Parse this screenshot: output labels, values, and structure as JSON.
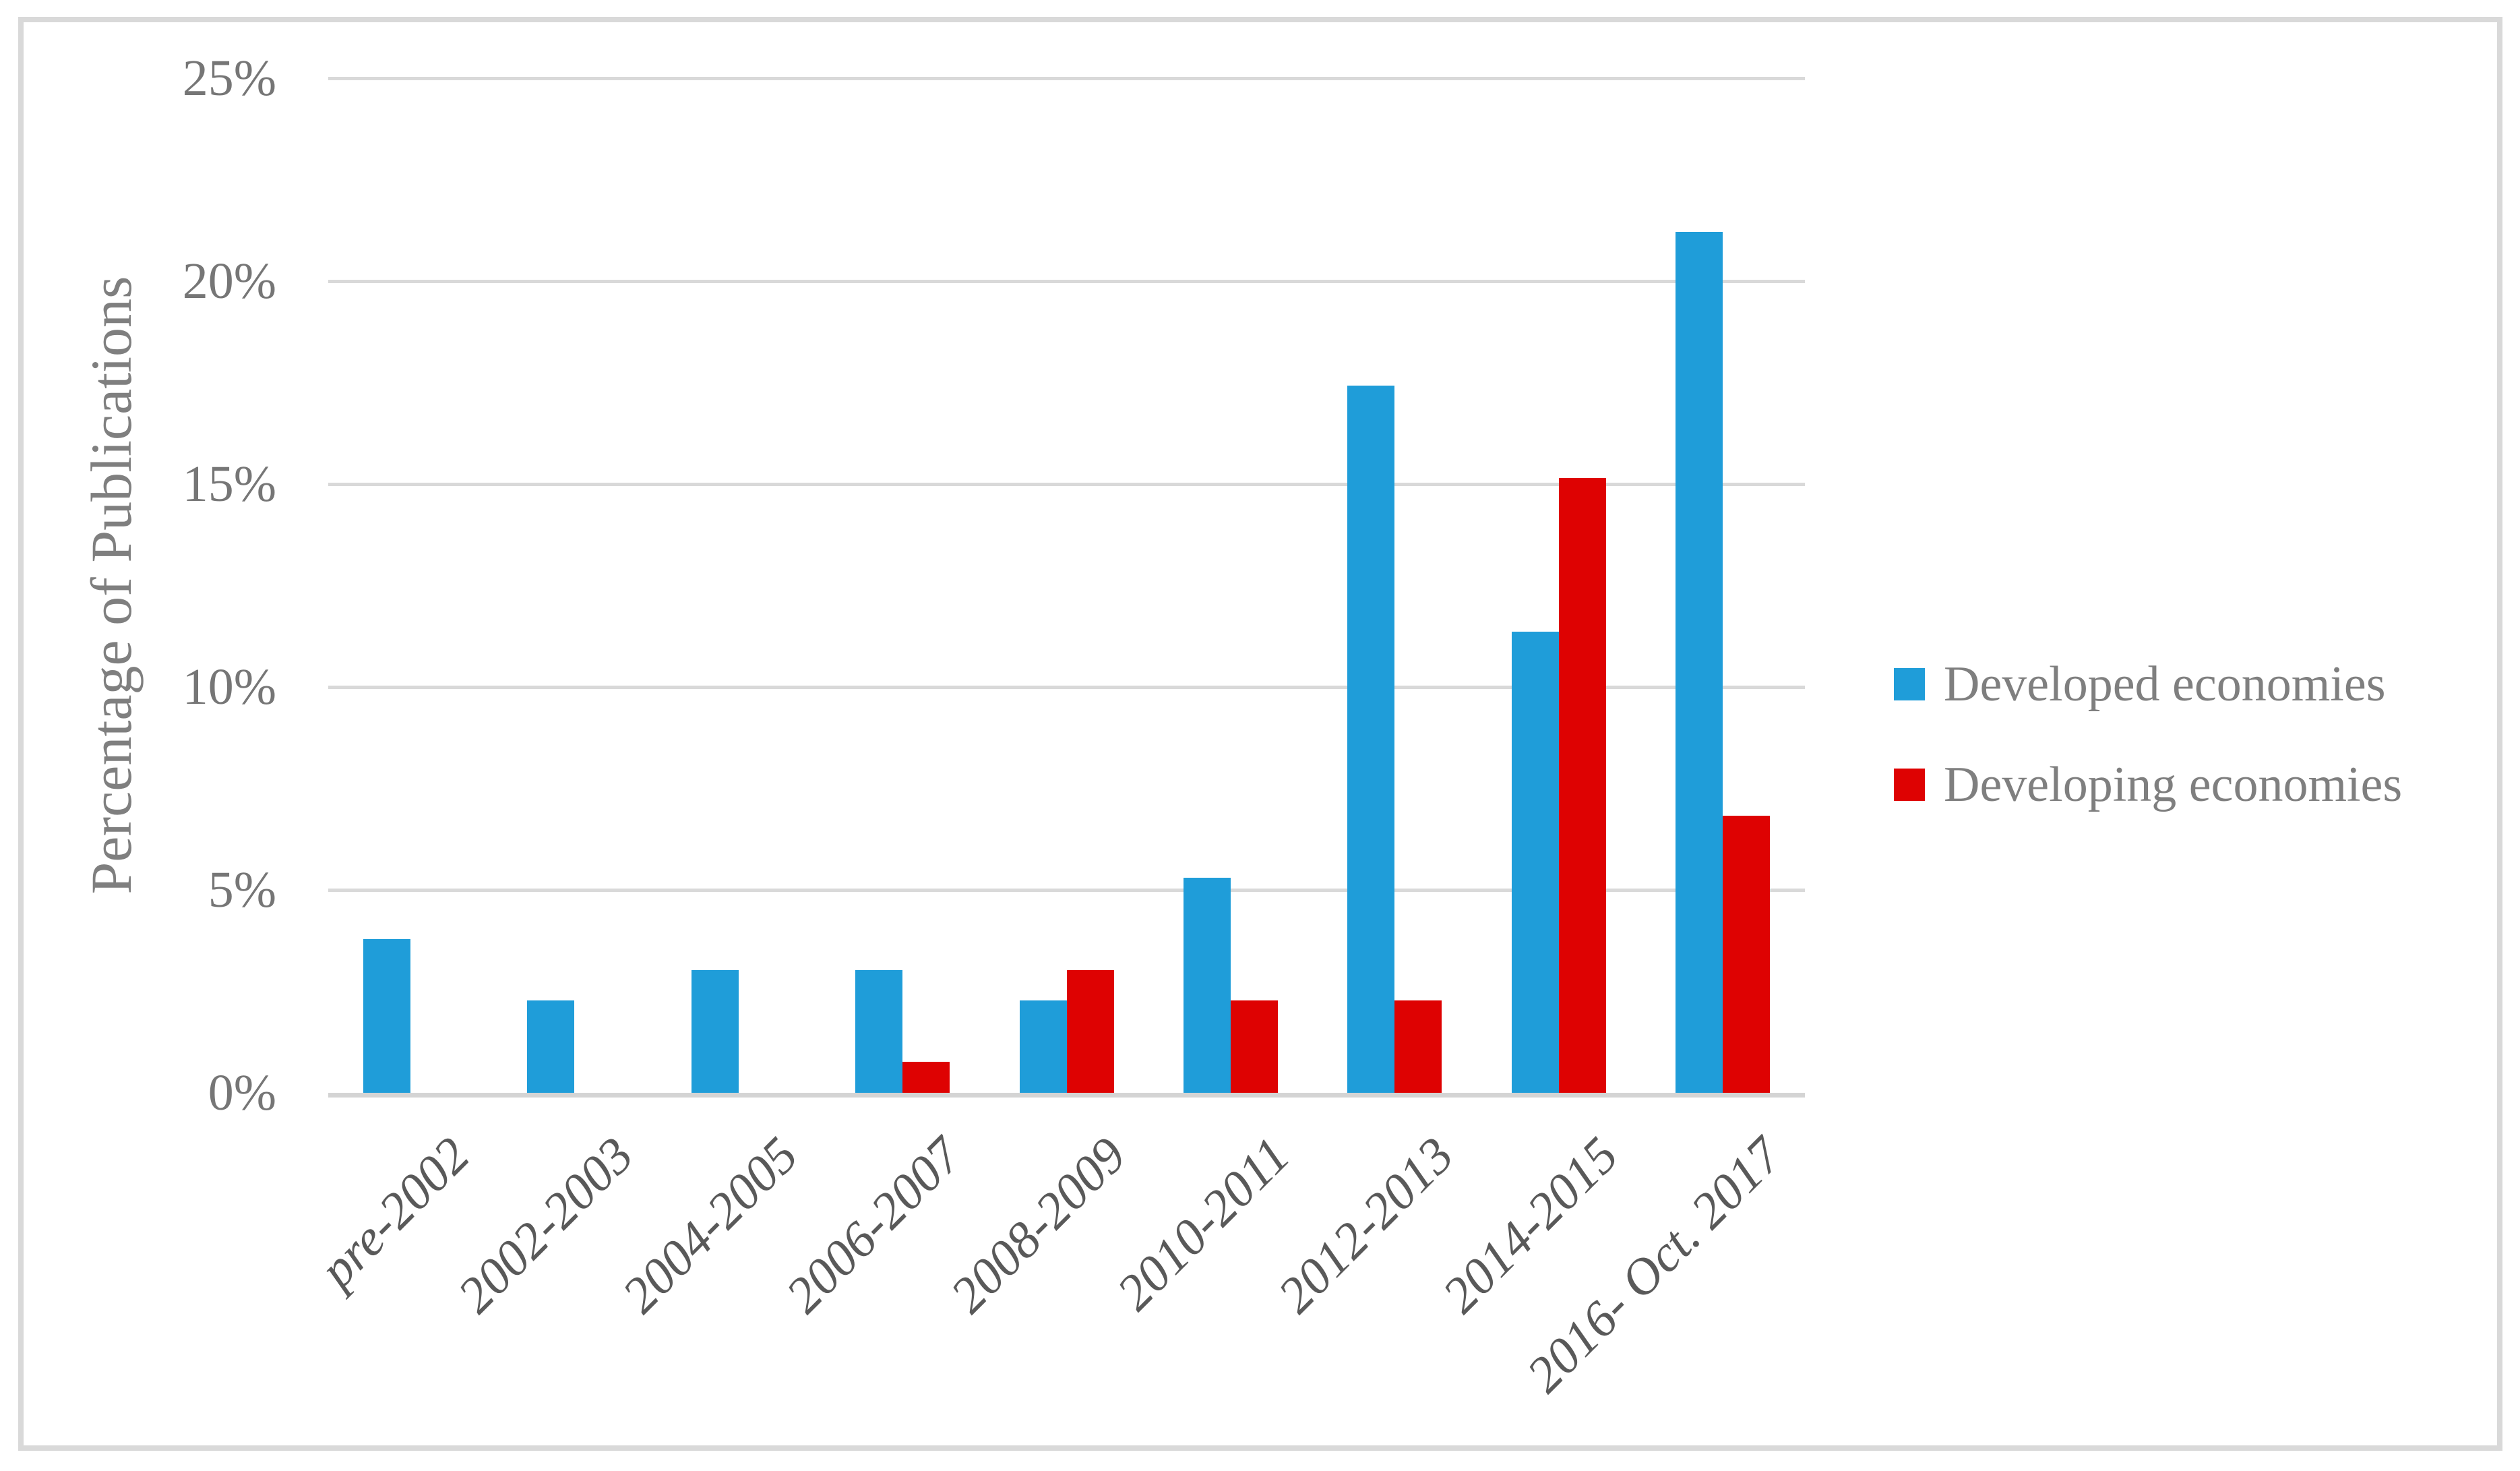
{
  "chart_data": {
    "type": "bar",
    "title": "",
    "ylabel": "Percentage of Publications",
    "xlabel": "",
    "categories": [
      "pre-2002",
      "2002-2003",
      "2004-2005",
      "2006-2007",
      "2008-2009",
      "2010-2011",
      "2012-2013",
      "2014-2015",
      "2016- Oct. 2017"
    ],
    "series": [
      {
        "name": "Developed economies",
        "color": "#1F9DD9",
        "values": [
          3.79,
          2.27,
          3.03,
          3.03,
          2.27,
          5.3,
          17.42,
          11.36,
          21.21
        ]
      },
      {
        "name": "Developing economies",
        "color": "#DE0202",
        "values": [
          0,
          0,
          0,
          0.76,
          3.03,
          2.27,
          2.27,
          15.15,
          6.82
        ]
      }
    ],
    "y_ticks": [
      {
        "label": "0%",
        "value": 0
      },
      {
        "label": "5%",
        "value": 5
      },
      {
        "label": "10%",
        "value": 10
      },
      {
        "label": "15%",
        "value": 15
      },
      {
        "label": "20%",
        "value": 20
      },
      {
        "label": "25%",
        "value": 25
      }
    ],
    "ylim": [
      0,
      25
    ],
    "grid": true,
    "legend_position": "right",
    "theme": {
      "gridline_color": "#D9D9D9",
      "axisline_color": "#D4D4D4",
      "ytick_color": "#767676",
      "xlabel_color": "#595959",
      "legend_text_color": "#7F7F7F",
      "frame_color": "#D9D9D9"
    }
  }
}
